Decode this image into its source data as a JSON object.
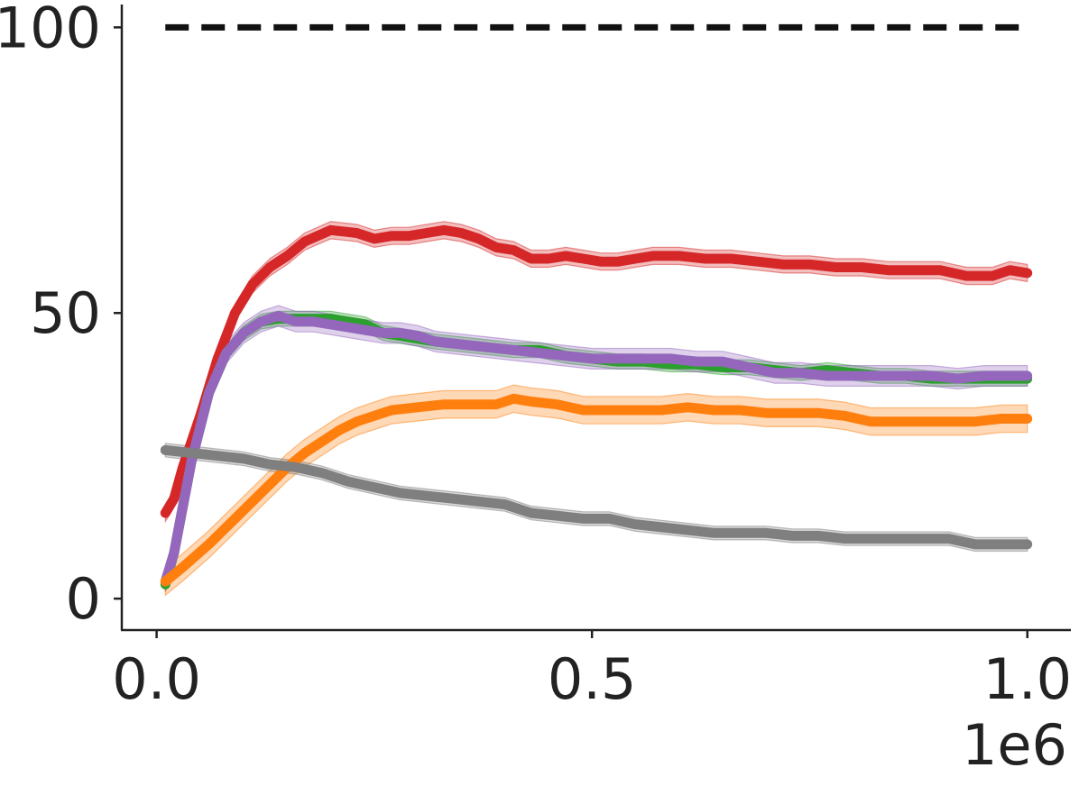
{
  "chart_data": {
    "type": "line",
    "title": "",
    "xlabel": "",
    "ylabel": "",
    "x_offset_label": "1e6",
    "xlim": [
      -0.04,
      1.05
    ],
    "ylim": [
      -5.5,
      104
    ],
    "xticks": [
      0.0,
      0.5,
      1.0
    ],
    "xtick_labels": [
      "0.0",
      "0.5",
      "1.0"
    ],
    "yticks": [
      0,
      50,
      100
    ],
    "ytick_labels": [
      "0",
      "50",
      "100"
    ],
    "grid": false,
    "legend": "none",
    "reference_line": {
      "y": 100,
      "style": "dashed",
      "color": "#111111",
      "x_range": [
        0.01,
        1.0
      ]
    },
    "series": [
      {
        "color": "#d62728",
        "x": [
          0.01,
          0.02,
          0.03,
          0.05,
          0.07,
          0.09,
          0.11,
          0.13,
          0.15,
          0.17,
          0.2,
          0.23,
          0.25,
          0.27,
          0.29,
          0.31,
          0.33,
          0.35,
          0.37,
          0.39,
          0.41,
          0.43,
          0.45,
          0.47,
          0.49,
          0.51,
          0.53,
          0.55,
          0.57,
          0.6,
          0.63,
          0.66,
          0.69,
          0.72,
          0.75,
          0.78,
          0.81,
          0.84,
          0.87,
          0.9,
          0.93,
          0.96,
          0.98,
          1.0
        ],
        "y": [
          15,
          17.5,
          23,
          32,
          42,
          50,
          55,
          58,
          60,
          62.5,
          64.5,
          64,
          63,
          63.5,
          63.5,
          64,
          64.5,
          64,
          63,
          61.5,
          61,
          59.5,
          59.5,
          60,
          59.5,
          59,
          59,
          59.5,
          60,
          60,
          59.5,
          59.5,
          59,
          58.5,
          58.5,
          58,
          58,
          57.5,
          57.5,
          57.5,
          56.5,
          56.5,
          57.5,
          57
        ],
        "band": 1.5
      },
      {
        "color": "#2ca02c",
        "x": [
          0.01,
          0.02,
          0.04,
          0.06,
          0.08,
          0.1,
          0.12,
          0.14,
          0.16,
          0.18,
          0.2,
          0.22,
          0.24,
          0.26,
          0.28,
          0.3,
          0.32,
          0.35,
          0.38,
          0.41,
          0.44,
          0.47,
          0.5,
          0.53,
          0.56,
          0.59,
          0.62,
          0.65,
          0.68,
          0.71,
          0.74,
          0.77,
          0.8,
          0.83,
          0.86,
          0.89,
          0.92,
          0.95,
          0.98,
          1.0
        ],
        "y": [
          2.5,
          8,
          24,
          36,
          43,
          46.5,
          48.5,
          49,
          49,
          49,
          49,
          48.5,
          48,
          46.5,
          46,
          45.5,
          45,
          44.5,
          44,
          43.5,
          43.5,
          42.5,
          42,
          41.5,
          41.5,
          41,
          41,
          40.5,
          40.5,
          40,
          39.5,
          40,
          39.5,
          39,
          39,
          38.5,
          38.5,
          38.5,
          38.5,
          38.5
        ],
        "band": 1.3
      },
      {
        "color": "#9467bd",
        "x": [
          0.01,
          0.02,
          0.04,
          0.06,
          0.08,
          0.1,
          0.12,
          0.14,
          0.16,
          0.18,
          0.2,
          0.22,
          0.24,
          0.26,
          0.28,
          0.3,
          0.32,
          0.35,
          0.38,
          0.41,
          0.44,
          0.47,
          0.5,
          0.53,
          0.56,
          0.59,
          0.62,
          0.65,
          0.68,
          0.71,
          0.74,
          0.77,
          0.8,
          0.83,
          0.86,
          0.89,
          0.92,
          0.95,
          0.98,
          1.0
        ],
        "y": [
          3,
          8,
          24,
          36,
          43,
          46.5,
          48.5,
          49.5,
          48.5,
          48.5,
          48,
          47.5,
          47,
          46.5,
          46.5,
          46,
          45,
          44.5,
          44,
          43.5,
          43,
          42.5,
          42,
          42,
          42,
          42,
          41.5,
          41.5,
          40.5,
          39.5,
          39.5,
          39,
          39,
          39,
          39,
          39,
          38.5,
          39,
          39,
          39
        ],
        "band": 1.8
      },
      {
        "color": "#ff7f0e",
        "x": [
          0.01,
          0.03,
          0.06,
          0.09,
          0.12,
          0.15,
          0.17,
          0.19,
          0.21,
          0.23,
          0.25,
          0.27,
          0.3,
          0.33,
          0.36,
          0.39,
          0.41,
          0.43,
          0.46,
          0.49,
          0.52,
          0.55,
          0.58,
          0.61,
          0.64,
          0.67,
          0.7,
          0.73,
          0.76,
          0.79,
          0.82,
          0.85,
          0.88,
          0.91,
          0.94,
          0.97,
          1.0
        ],
        "y": [
          3,
          5.5,
          9.5,
          14,
          18.5,
          23,
          25.5,
          27.5,
          29.5,
          31,
          32,
          33,
          33.5,
          34,
          34,
          34,
          35,
          34.5,
          34,
          33,
          33,
          33,
          33,
          33.5,
          33,
          33,
          32.5,
          32.5,
          32.5,
          32,
          31,
          31,
          31,
          31,
          31,
          31.5,
          31.5
        ],
        "band": 2.4
      },
      {
        "color": "#7f7f7f",
        "x": [
          0.01,
          0.04,
          0.07,
          0.1,
          0.13,
          0.16,
          0.19,
          0.22,
          0.25,
          0.28,
          0.31,
          0.34,
          0.37,
          0.4,
          0.43,
          0.46,
          0.49,
          0.52,
          0.55,
          0.58,
          0.61,
          0.64,
          0.67,
          0.7,
          0.73,
          0.76,
          0.79,
          0.82,
          0.85,
          0.88,
          0.91,
          0.94,
          0.97,
          1.0
        ],
        "y": [
          26,
          25.5,
          25,
          24.5,
          23.5,
          23,
          22,
          20.5,
          19.5,
          18.5,
          18,
          17.5,
          17,
          16.5,
          15,
          14.5,
          14,
          14,
          13,
          12.5,
          12,
          11.5,
          11.5,
          11.5,
          11,
          11,
          10.5,
          10.5,
          10.5,
          10.5,
          10.5,
          9.5,
          9.5,
          9.5
        ],
        "band": 1.2
      }
    ]
  }
}
